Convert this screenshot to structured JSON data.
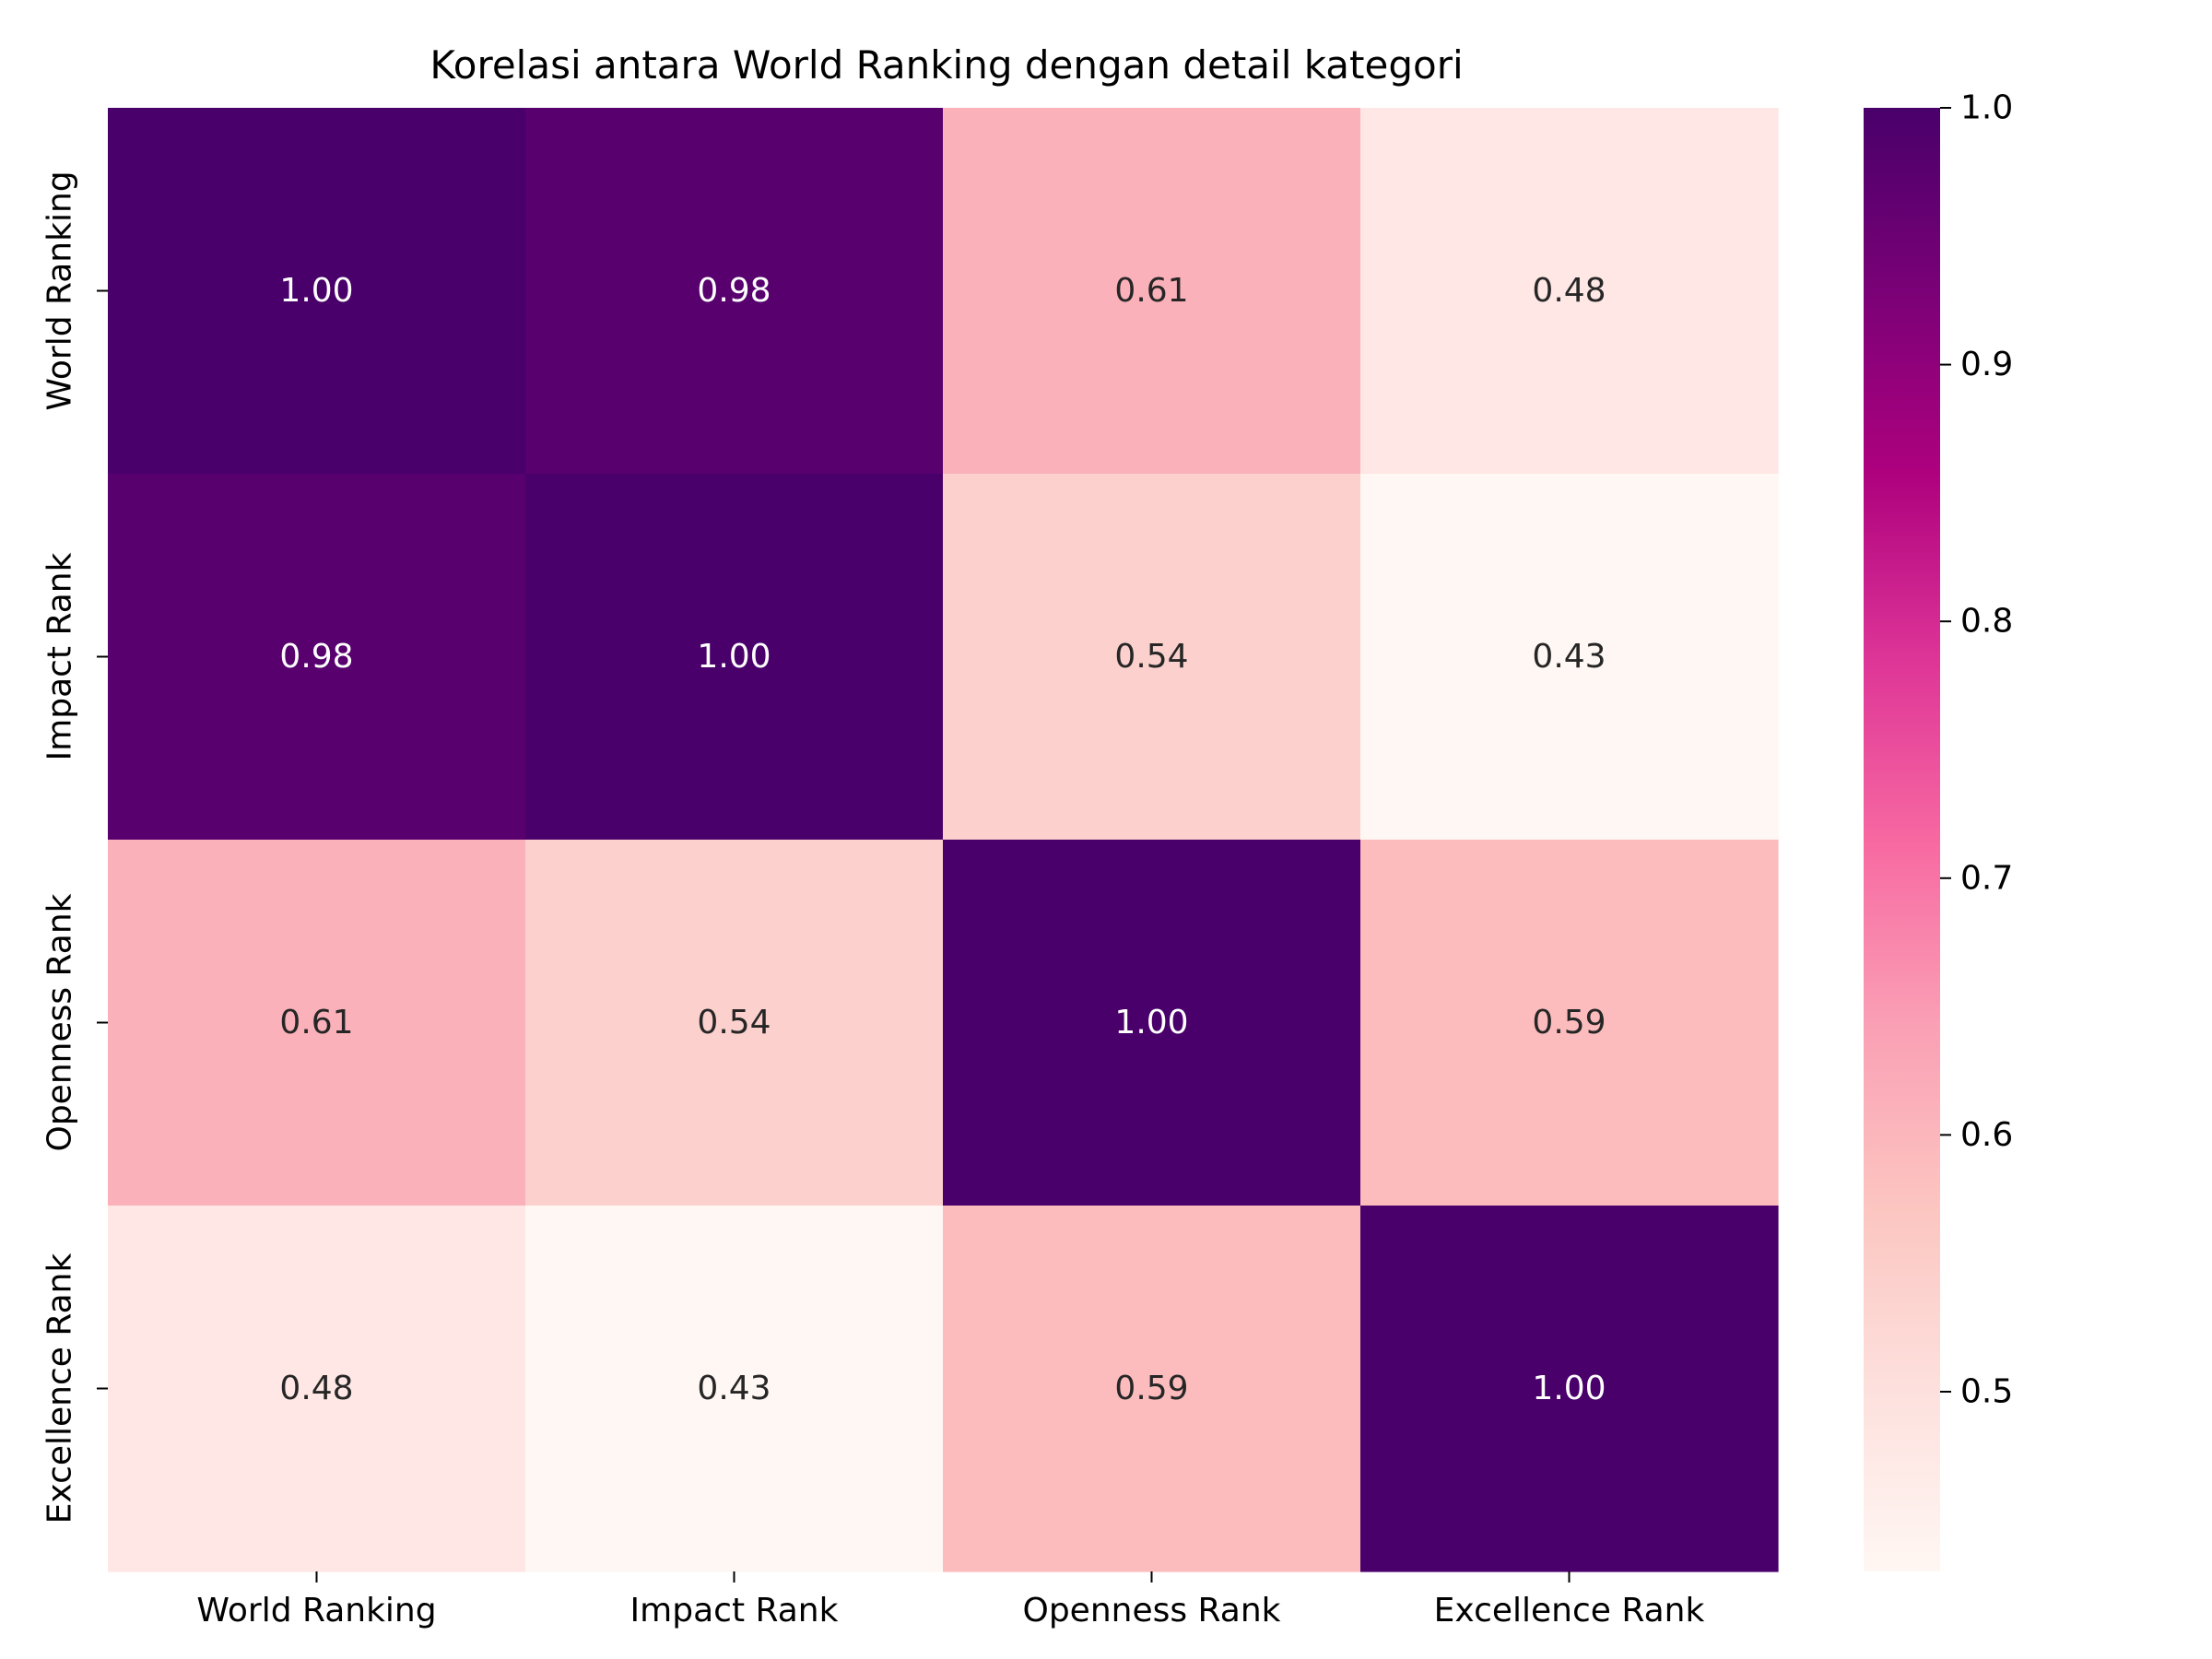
{
  "chart_data": {
    "type": "heatmap",
    "title": "Korelasi antara World Ranking dengan detail kategori",
    "xlabel": "",
    "ylabel": "",
    "x_categories": [
      "World Ranking",
      "Impact Rank",
      "Openness Rank",
      "Excellence Rank"
    ],
    "y_categories": [
      "World Ranking",
      "Impact Rank",
      "Openness Rank",
      "Excellence Rank"
    ],
    "values": [
      [
        1.0,
        0.98,
        0.61,
        0.48
      ],
      [
        0.98,
        1.0,
        0.54,
        0.43
      ],
      [
        0.61,
        0.54,
        1.0,
        0.59
      ],
      [
        0.48,
        0.43,
        0.59,
        1.0
      ]
    ],
    "value_labels": [
      [
        "1.00",
        "0.98",
        "0.61",
        "0.48"
      ],
      [
        "0.98",
        "1.00",
        "0.54",
        "0.43"
      ],
      [
        "0.61",
        "0.54",
        "1.00",
        "0.59"
      ],
      [
        "0.48",
        "0.43",
        "0.59",
        "1.00"
      ]
    ],
    "colormap": "RdPu",
    "color_range": [
      0.43,
      1.0
    ],
    "colorbar_ticks": [
      0.5,
      0.6,
      0.7,
      0.8,
      0.9,
      1.0
    ],
    "colorbar_tick_labels": [
      "0.5",
      "0.6",
      "0.7",
      "0.8",
      "0.9",
      "1.0"
    ],
    "colorbar_stops": [
      "#fff7f3",
      "#fde0dd",
      "#fcc5c0",
      "#fa9fb5",
      "#f768a1",
      "#dd3497",
      "#ae017e",
      "#7a0177",
      "#49006a"
    ],
    "text_dark": "#262626",
    "text_light": "#ffffff"
  }
}
